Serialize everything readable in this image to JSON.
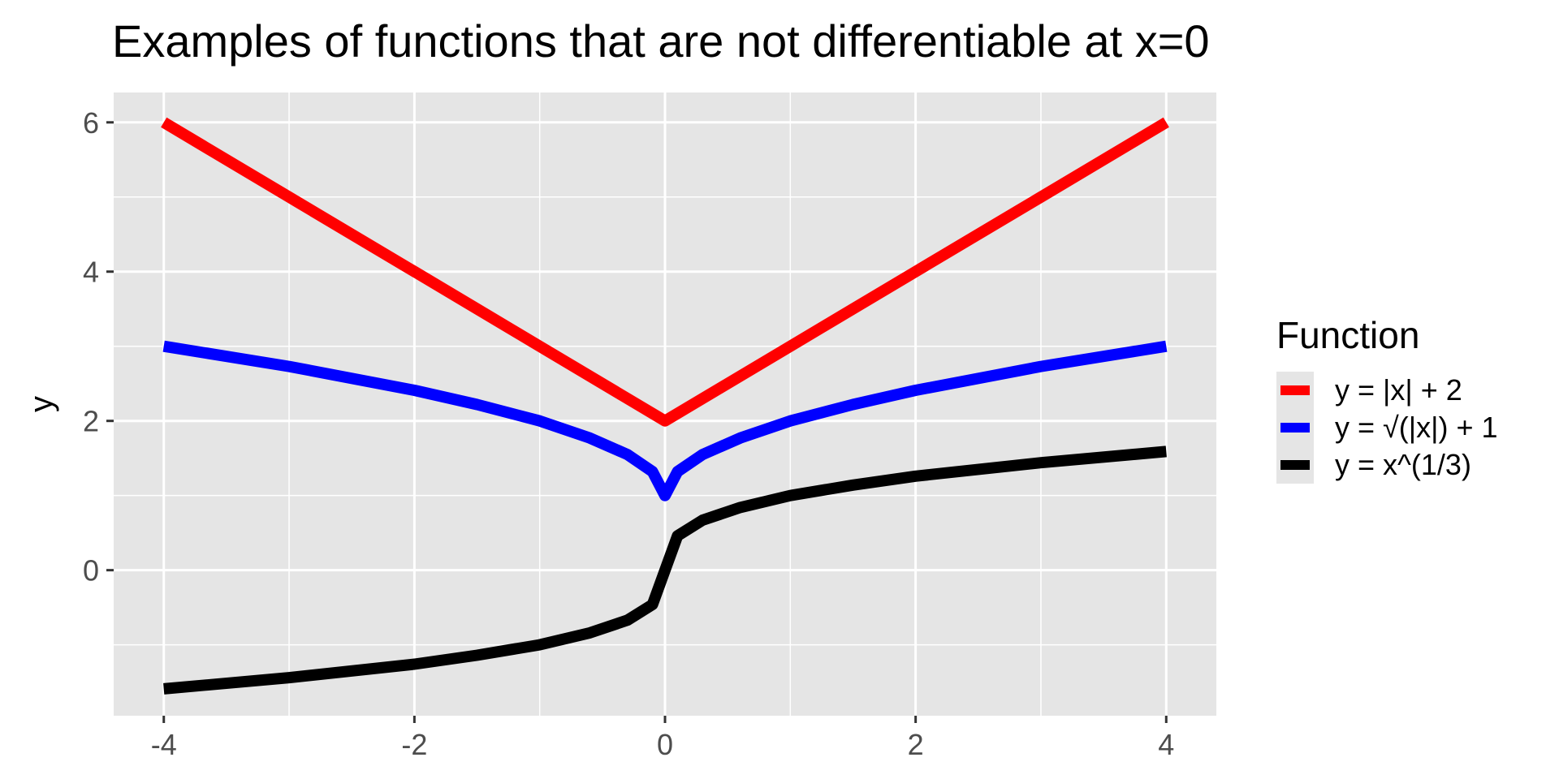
{
  "chart_data": {
    "type": "line",
    "title": "Examples of functions that are not differentiable at x=0",
    "xlabel": "",
    "ylabel": "y",
    "xlim": [
      -4.4,
      4.4
    ],
    "ylim": [
      -1.95,
      6.4
    ],
    "x_ticks": [
      -4,
      -2,
      0,
      2,
      4
    ],
    "y_ticks": [
      0,
      2,
      4,
      6
    ],
    "grid": true,
    "legend": {
      "title": "Function",
      "position": "right"
    },
    "series": [
      {
        "name": "y = |x| + 2",
        "color": "#ff0000",
        "x": [
          -4,
          -3,
          -2,
          -1,
          0,
          1,
          2,
          3,
          4
        ],
        "y": [
          6,
          5,
          4,
          3,
          2,
          3,
          4,
          5,
          6
        ]
      },
      {
        "name": "y = √(|x|) + 1",
        "color": "#0000ff",
        "x": [
          -4,
          -3,
          -2,
          -1.5,
          -1,
          -0.6,
          -0.3,
          -0.1,
          0,
          0.1,
          0.3,
          0.6,
          1,
          1.5,
          2,
          3,
          4
        ],
        "y": [
          3,
          2.73,
          2.41,
          2.22,
          2,
          1.77,
          1.55,
          1.32,
          1,
          1.32,
          1.55,
          1.77,
          2,
          2.22,
          2.41,
          2.73,
          3
        ]
      },
      {
        "name": "y = x^(1/3)",
        "color": "#000000",
        "x": [
          -4,
          -3,
          -2,
          -1.5,
          -1,
          -0.6,
          -0.3,
          -0.1,
          0,
          0.1,
          0.3,
          0.6,
          1,
          1.5,
          2,
          3,
          4
        ],
        "y": [
          -1.59,
          -1.44,
          -1.26,
          -1.14,
          -1,
          -0.84,
          -0.67,
          -0.46,
          0,
          0.46,
          0.67,
          0.84,
          1,
          1.14,
          1.26,
          1.44,
          1.59
        ]
      }
    ]
  }
}
